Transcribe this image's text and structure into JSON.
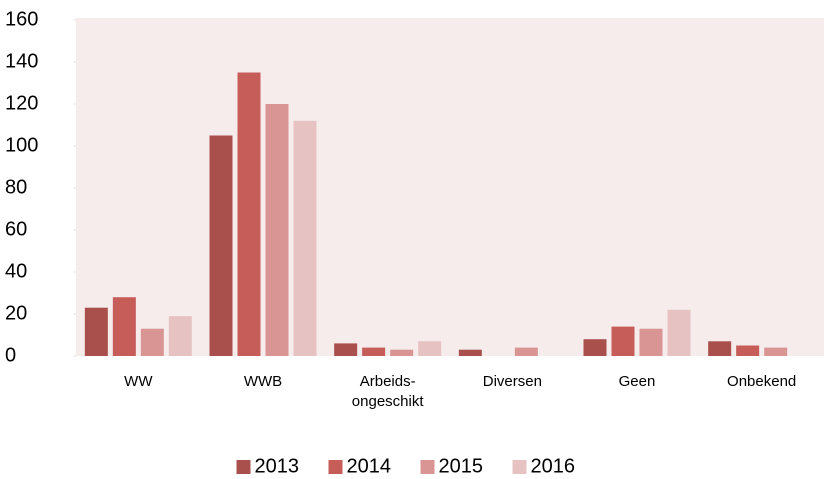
{
  "chart_data": {
    "type": "bar",
    "categories": [
      "WW",
      "WWB",
      "Arbeids-\nongeschikt",
      "Diversen",
      "Geen",
      "Onbekend"
    ],
    "series": [
      {
        "name": "2013",
        "color": "#a9504c",
        "values": [
          23,
          105,
          6,
          3,
          8,
          7
        ]
      },
      {
        "name": "2014",
        "color": "#c65d58",
        "values": [
          28,
          135,
          4,
          null,
          14,
          5
        ]
      },
      {
        "name": "2015",
        "color": "#d99594",
        "values": [
          13,
          120,
          3,
          4,
          13,
          4
        ]
      },
      {
        "name": "2016",
        "color": "#e6c3c2",
        "values": [
          19,
          112,
          7,
          null,
          22,
          null
        ]
      }
    ],
    "ylim": [
      0,
      160
    ],
    "yticks": [
      0,
      20,
      40,
      60,
      80,
      100,
      120,
      140,
      160
    ],
    "legend": "bottom"
  }
}
